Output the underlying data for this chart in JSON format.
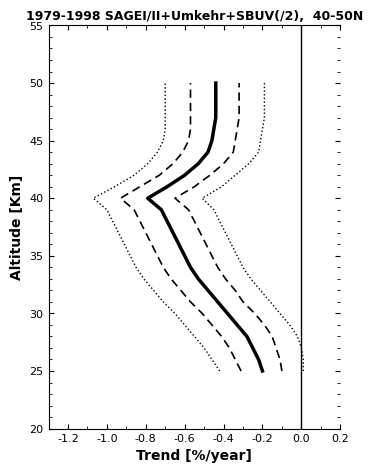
{
  "title": "1979-1998 SAGEI/II+Umkehr+SBUV(/2),  40-50N",
  "xlabel": "Trend [%/year]",
  "ylabel": "Altitude [Km]",
  "xlim": [
    -1.3,
    0.2
  ],
  "ylim": [
    20,
    55
  ],
  "xticks": [
    -1.2,
    -1.0,
    -0.8,
    -0.6,
    -0.4,
    -0.2,
    0.0,
    0.2
  ],
  "yticks": [
    20,
    25,
    30,
    35,
    40,
    45,
    50,
    55
  ],
  "altitude": [
    25,
    26,
    27,
    28,
    29,
    30,
    31,
    32,
    33,
    34,
    35,
    36,
    37,
    38,
    39,
    40,
    41,
    42,
    43,
    44,
    45,
    46,
    47,
    48,
    49,
    50
  ],
  "mean": [
    -0.2,
    -0.22,
    -0.25,
    -0.28,
    -0.33,
    -0.38,
    -0.43,
    -0.48,
    -0.53,
    -0.57,
    -0.6,
    -0.63,
    -0.66,
    -0.69,
    -0.72,
    -0.79,
    -0.69,
    -0.6,
    -0.53,
    -0.48,
    -0.46,
    -0.45,
    -0.44,
    -0.44,
    -0.44,
    -0.44
  ],
  "dashed_left": [
    -0.31,
    -0.34,
    -0.37,
    -0.41,
    -0.46,
    -0.51,
    -0.57,
    -0.62,
    -0.67,
    -0.71,
    -0.74,
    -0.77,
    -0.8,
    -0.83,
    -0.86,
    -0.93,
    -0.83,
    -0.73,
    -0.66,
    -0.61,
    -0.58,
    -0.57,
    -0.57,
    -0.57,
    -0.57,
    -0.57
  ],
  "dashed_right": [
    -0.1,
    -0.11,
    -0.13,
    -0.15,
    -0.19,
    -0.24,
    -0.3,
    -0.34,
    -0.39,
    -0.43,
    -0.46,
    -0.49,
    -0.52,
    -0.55,
    -0.58,
    -0.65,
    -0.55,
    -0.47,
    -0.4,
    -0.35,
    -0.34,
    -0.33,
    -0.32,
    -0.32,
    -0.32,
    -0.32
  ],
  "dotted_left": [
    -0.42,
    -0.46,
    -0.5,
    -0.55,
    -0.6,
    -0.65,
    -0.71,
    -0.76,
    -0.81,
    -0.85,
    -0.88,
    -0.91,
    -0.94,
    -0.97,
    -1.0,
    -1.07,
    -0.96,
    -0.86,
    -0.79,
    -0.74,
    -0.71,
    -0.7,
    -0.7,
    -0.7,
    -0.7,
    -0.7
  ],
  "dotted_right": [
    0.01,
    0.01,
    0.0,
    -0.02,
    -0.06,
    -0.11,
    -0.16,
    -0.21,
    -0.26,
    -0.3,
    -0.33,
    -0.36,
    -0.39,
    -0.42,
    -0.45,
    -0.51,
    -0.41,
    -0.34,
    -0.27,
    -0.22,
    -0.21,
    -0.2,
    -0.19,
    -0.19,
    -0.19,
    -0.19
  ]
}
